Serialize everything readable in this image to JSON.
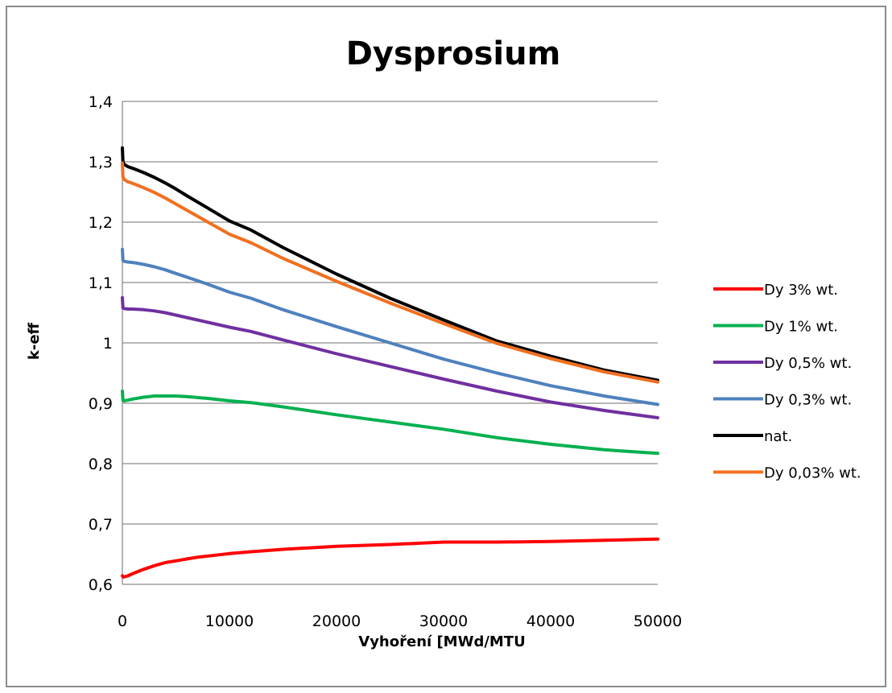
{
  "chart_data": {
    "type": "line",
    "title": "Dysprosium",
    "xlabel": "Vyhoření [MWd/MTU",
    "ylabel": "k-eff",
    "xlim": [
      0,
      50000
    ],
    "ylim": [
      0.6,
      1.4
    ],
    "x_ticks": [
      "0",
      "10000",
      "20000",
      "30000",
      "40000",
      "50000"
    ],
    "y_ticks": [
      "0,6",
      "0,7",
      "0,8",
      "0,9",
      "1",
      "1,1",
      "1,2",
      "1,3",
      "1,4"
    ],
    "grid": "horizontal",
    "legend_position": "right",
    "series": [
      {
        "name": "Dy 3% wt.",
        "color": "#ff0000",
        "x": [
          0,
          100,
          500,
          1000,
          2000,
          3000,
          4000,
          5000,
          6000,
          7000,
          8000,
          10000,
          12000,
          15000,
          20000,
          25000,
          30000,
          35000,
          40000,
          45000,
          50000
        ],
        "y": [
          0.614,
          0.612,
          0.614,
          0.618,
          0.625,
          0.631,
          0.636,
          0.639,
          0.642,
          0.645,
          0.647,
          0.651,
          0.654,
          0.658,
          0.663,
          0.666,
          0.67,
          0.67,
          0.671,
          0.673,
          0.675
        ]
      },
      {
        "name": "Dy 1% wt.",
        "color": "#00b050",
        "x": [
          0,
          50,
          150,
          500,
          1000,
          2000,
          3000,
          4000,
          5000,
          6000,
          8000,
          10000,
          12000,
          15000,
          20000,
          25000,
          30000,
          35000,
          40000,
          45000,
          50000
        ],
        "y": [
          0.92,
          0.905,
          0.904,
          0.905,
          0.907,
          0.91,
          0.912,
          0.912,
          0.912,
          0.911,
          0.908,
          0.904,
          0.901,
          0.894,
          0.881,
          0.869,
          0.857,
          0.843,
          0.832,
          0.823,
          0.817
        ]
      },
      {
        "name": "Dy 0,5% wt.",
        "color": "#7030a0",
        "x": [
          0,
          50,
          150,
          500,
          1000,
          2000,
          3000,
          4000,
          5000,
          6000,
          8000,
          10000,
          12000,
          15000,
          20000,
          25000,
          30000,
          35000,
          40000,
          45000,
          50000
        ],
        "y": [
          1.075,
          1.058,
          1.057,
          1.056,
          1.056,
          1.055,
          1.053,
          1.05,
          1.046,
          1.042,
          1.034,
          1.026,
          1.019,
          1.005,
          0.982,
          0.961,
          0.94,
          0.92,
          0.902,
          0.888,
          0.876
        ]
      },
      {
        "name": "Dy 0,3% wt.",
        "color": "#4f81bd",
        "x": [
          0,
          50,
          150,
          500,
          1000,
          2000,
          3000,
          4000,
          5000,
          6000,
          8000,
          10000,
          12000,
          15000,
          20000,
          25000,
          30000,
          35000,
          40000,
          45000,
          50000
        ],
        "y": [
          1.155,
          1.137,
          1.135,
          1.134,
          1.133,
          1.13,
          1.126,
          1.121,
          1.115,
          1.109,
          1.097,
          1.084,
          1.074,
          1.055,
          1.027,
          1.0,
          0.973,
          0.95,
          0.929,
          0.912,
          0.898
        ]
      },
      {
        "name": "nat.",
        "color": "#000000",
        "x": [
          0,
          50,
          150,
          500,
          1000,
          2000,
          3000,
          4000,
          5000,
          6000,
          8000,
          10000,
          12000,
          15000,
          20000,
          25000,
          30000,
          35000,
          40000,
          45000,
          50000
        ],
        "y": [
          1.323,
          1.3,
          1.296,
          1.292,
          1.289,
          1.282,
          1.274,
          1.265,
          1.255,
          1.244,
          1.223,
          1.202,
          1.187,
          1.158,
          1.114,
          1.074,
          1.038,
          1.003,
          0.978,
          0.955,
          0.938
        ]
      },
      {
        "name": "Dy 0,03% wt.",
        "color": "#f07020",
        "x": [
          0,
          50,
          150,
          500,
          1000,
          2000,
          3000,
          4000,
          5000,
          6000,
          8000,
          10000,
          12000,
          15000,
          20000,
          25000,
          30000,
          35000,
          40000,
          45000,
          50000
        ],
        "y": [
          1.298,
          1.275,
          1.271,
          1.267,
          1.264,
          1.257,
          1.249,
          1.24,
          1.23,
          1.22,
          1.2,
          1.18,
          1.166,
          1.14,
          1.102,
          1.066,
          1.032,
          0.999,
          0.974,
          0.952,
          0.935
        ]
      }
    ]
  }
}
